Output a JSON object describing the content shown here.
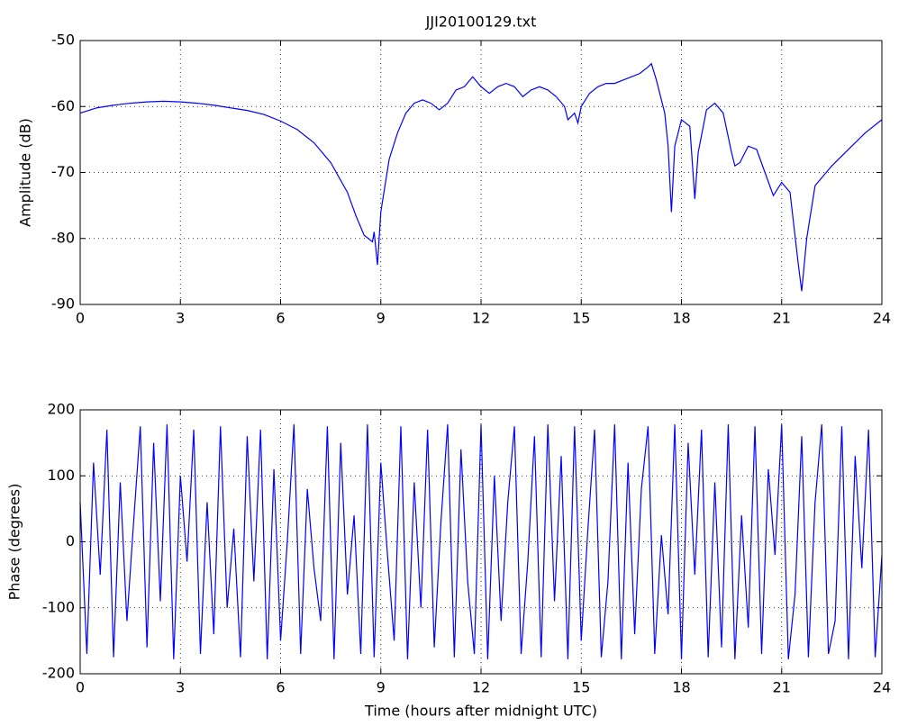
{
  "chart_data": [
    {
      "type": "line",
      "title": "JJI20100129.txt",
      "y_label": "Amplitude (dB)",
      "grid": true,
      "xlim": [
        0,
        24
      ],
      "xticks": [
        0,
        3,
        6,
        9,
        12,
        15,
        18,
        21,
        24
      ],
      "ylim": [
        -90,
        -50
      ],
      "yticks": [
        -90,
        -80,
        -70,
        -60,
        -50
      ],
      "series": [
        {
          "color": "#0000ff",
          "x": [
            0,
            0.5,
            1,
            1.5,
            2,
            2.5,
            3,
            3.5,
            4,
            4.5,
            5,
            5.5,
            6,
            6.5,
            7,
            7.5,
            8,
            8.25,
            8.5,
            8.75,
            8.8,
            8.9,
            9,
            9.25,
            9.5,
            9.75,
            10,
            10.25,
            10.5,
            10.75,
            11,
            11.25,
            11.5,
            11.75,
            12,
            12.25,
            12.5,
            12.75,
            13,
            13.25,
            13.5,
            13.75,
            14,
            14.25,
            14.5,
            14.6,
            14.8,
            14.9,
            15,
            15.25,
            15.5,
            15.75,
            16,
            16.25,
            16.5,
            16.75,
            17,
            17.1,
            17.25,
            17.5,
            17.6,
            17.7,
            17.8,
            18,
            18.25,
            18.4,
            18.5,
            18.75,
            19,
            19.25,
            19.5,
            19.6,
            19.75,
            20,
            20.25,
            20.5,
            20.75,
            21,
            21.25,
            21.5,
            21.6,
            21.75,
            22,
            22.5,
            23,
            23.5,
            24
          ],
          "values": [
            -61,
            -60.2,
            -59.8,
            -59.5,
            -59.3,
            -59.2,
            -59.3,
            -59.5,
            -59.8,
            -60.2,
            -60.6,
            -61.2,
            -62.2,
            -63.5,
            -65.5,
            -68.5,
            -73,
            -76.5,
            -79.5,
            -80.5,
            -79,
            -84,
            -76,
            -68,
            -64,
            -61,
            -59.5,
            -59,
            -59.5,
            -60.5,
            -59.5,
            -57.5,
            -57,
            -55.5,
            -57,
            -58,
            -57,
            -56.5,
            -57,
            -58.5,
            -57.5,
            -57,
            -57.5,
            -58.5,
            -60,
            -62,
            -61,
            -62.5,
            -60,
            -58,
            -57,
            -56.5,
            -56.5,
            -56,
            -55.5,
            -55,
            -54,
            -53.5,
            -56,
            -61,
            -66,
            -76,
            -66,
            -62,
            -63,
            -74,
            -67,
            -60.5,
            -59.5,
            -61,
            -67,
            -69,
            -68.5,
            -66,
            -66.5,
            -70,
            -73.5,
            -71.5,
            -73,
            -84,
            -88,
            -80,
            -72,
            -69,
            -66.5,
            -64,
            -62
          ]
        }
      ]
    },
    {
      "type": "line",
      "y_label": "Phase (degrees)",
      "x_label": "Time (hours after midnight UTC)",
      "grid": true,
      "xlim": [
        0,
        24
      ],
      "xticks": [
        0,
        3,
        6,
        9,
        12,
        15,
        18,
        21,
        24
      ],
      "ylim": [
        -200,
        200
      ],
      "yticks": [
        -200,
        -100,
        0,
        100,
        200
      ],
      "series": [
        {
          "color": "#0000ff",
          "x": [
            0,
            0.2,
            0.4,
            0.6,
            0.8,
            1,
            1.2,
            1.4,
            1.6,
            1.8,
            2,
            2.2,
            2.4,
            2.6,
            2.8,
            3,
            3.2,
            3.4,
            3.6,
            3.8,
            4,
            4.2,
            4.4,
            4.6,
            4.8,
            5,
            5.2,
            5.4,
            5.6,
            5.8,
            6,
            6.2,
            6.4,
            6.6,
            6.8,
            7,
            7.2,
            7.4,
            7.6,
            7.8,
            8,
            8.2,
            8.4,
            8.6,
            8.8,
            9,
            9.2,
            9.4,
            9.6,
            9.8,
            10,
            10.2,
            10.4,
            10.6,
            10.8,
            11,
            11.2,
            11.4,
            11.6,
            11.8,
            12,
            12.2,
            12.4,
            12.6,
            12.8,
            13,
            13.2,
            13.4,
            13.6,
            13.8,
            14,
            14.2,
            14.4,
            14.6,
            14.8,
            15,
            15.2,
            15.4,
            15.6,
            15.8,
            16,
            16.2,
            16.4,
            16.6,
            16.8,
            17,
            17.2,
            17.4,
            17.6,
            17.8,
            18,
            18.2,
            18.4,
            18.6,
            18.8,
            19,
            19.2,
            19.4,
            19.6,
            19.8,
            20,
            20.2,
            20.4,
            20.6,
            20.8,
            21,
            21.2,
            21.4,
            21.6,
            21.8,
            22,
            22.2,
            22.4,
            22.6,
            22.8,
            23,
            23.2,
            23.4,
            23.6,
            23.8,
            24
          ],
          "values": [
            60,
            -170,
            120,
            -50,
            170,
            -175,
            90,
            -120,
            30,
            175,
            -160,
            150,
            -90,
            178,
            -178,
            100,
            -30,
            170,
            -170,
            60,
            -140,
            175,
            -100,
            20,
            -175,
            160,
            -60,
            170,
            -178,
            110,
            -150,
            0,
            178,
            -170,
            80,
            -40,
            -120,
            175,
            -178,
            150,
            -80,
            40,
            -170,
            178,
            -175,
            120,
            -20,
            -150,
            175,
            -178,
            90,
            -100,
            170,
            -160,
            30,
            178,
            -175,
            140,
            -60,
            -170,
            178,
            -178,
            100,
            -120,
            60,
            175,
            -170,
            -30,
            160,
            -175,
            178,
            -90,
            130,
            -178,
            175,
            -150,
            20,
            170,
            -175,
            -60,
            178,
            -178,
            120,
            -140,
            80,
            175,
            -170,
            10,
            -110,
            178,
            -178,
            150,
            -50,
            170,
            -175,
            90,
            -160,
            178,
            -178,
            40,
            -130,
            175,
            -170,
            110,
            -20,
            178,
            -178,
            -80,
            160,
            -175,
            60,
            178,
            -170,
            -120,
            175,
            -178,
            130,
            -40,
            170,
            -175,
            -20
          ]
        }
      ]
    }
  ]
}
